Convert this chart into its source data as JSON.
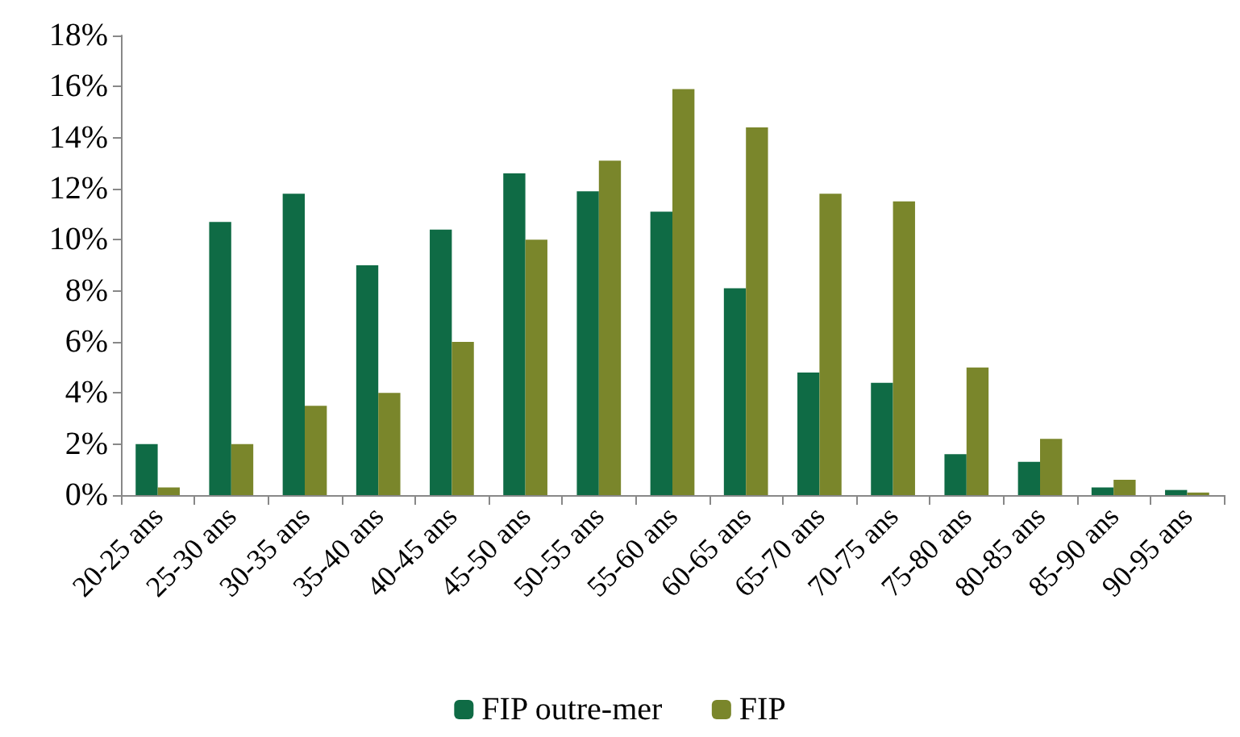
{
  "chart_data": {
    "type": "bar",
    "categories": [
      "20-25 ans",
      "25-30 ans",
      "30-35 ans",
      "35-40 ans",
      "40-45 ans",
      "45-50 ans",
      "50-55 ans",
      "55-60 ans",
      "60-65 ans",
      "65-70 ans",
      "70-75 ans",
      "75-80 ans",
      "80-85 ans",
      "85-90 ans",
      "90-95 ans"
    ],
    "series": [
      {
        "name": "FIP outre-mer",
        "color": "#0f6b45",
        "values": [
          2.0,
          10.7,
          11.8,
          9.0,
          10.4,
          12.6,
          11.9,
          11.1,
          8.1,
          4.8,
          4.4,
          1.6,
          1.3,
          0.3,
          0.2
        ]
      },
      {
        "name": "FIP",
        "color": "#7a862b",
        "values": [
          0.3,
          2.0,
          3.5,
          4.0,
          6.0,
          10.0,
          13.1,
          15.9,
          14.4,
          11.8,
          11.5,
          5.0,
          2.2,
          0.6,
          0.1
        ]
      }
    ],
    "ylim": [
      0,
      18
    ],
    "yticks": [
      {
        "value": 0,
        "label": "0%"
      },
      {
        "value": 2,
        "label": "2%"
      },
      {
        "value": 4,
        "label": "4%"
      },
      {
        "value": 6,
        "label": "6%"
      },
      {
        "value": 8,
        "label": "8%"
      },
      {
        "value": 10,
        "label": "10%"
      },
      {
        "value": 12,
        "label": "12%"
      },
      {
        "value": 14,
        "label": "14%"
      },
      {
        "value": 16,
        "label": "16%"
      },
      {
        "value": 18,
        "label": "18%"
      }
    ],
    "grid": false,
    "legend": "bottom"
  }
}
